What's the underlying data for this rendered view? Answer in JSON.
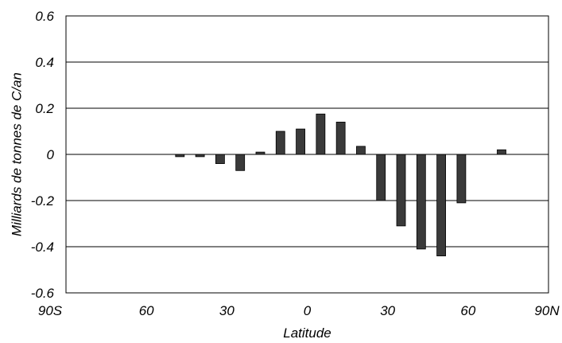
{
  "chart_data": {
    "type": "bar",
    "title": "",
    "xlabel": "Latitude",
    "ylabel": "Milliards de tonnes de  C/an",
    "xlim": [
      -90,
      90
    ],
    "ylim": [
      -0.6,
      0.6
    ],
    "y_ticks": [
      "0.6",
      "0.4",
      "0.2",
      "0",
      "-0.2",
      "-0.4",
      "-0.6"
    ],
    "y_tick_values": [
      0.6,
      0.4,
      0.2,
      0,
      -0.2,
      -0.4,
      -0.6
    ],
    "x_ticks": [
      "90S",
      "60",
      "30",
      "0",
      "30",
      "60",
      "90N"
    ],
    "x_tick_values": [
      -90,
      -60,
      -30,
      0,
      30,
      60,
      90
    ],
    "grid": "horizontal",
    "bar_color": "#3a3a3a",
    "series": [
      {
        "x": [
          -47.5,
          -40,
          -32.5,
          -25,
          -17.5,
          -10,
          -2.5,
          5,
          12.5,
          20,
          27.5,
          35,
          42.5,
          50,
          57.5,
          72.5
        ],
        "values": [
          -0.01,
          -0.01,
          -0.04,
          -0.07,
          0.01,
          0.1,
          0.11,
          0.175,
          0.14,
          0.035,
          -0.2,
          -0.31,
          -0.41,
          -0.44,
          -0.21,
          0.02
        ]
      }
    ]
  }
}
